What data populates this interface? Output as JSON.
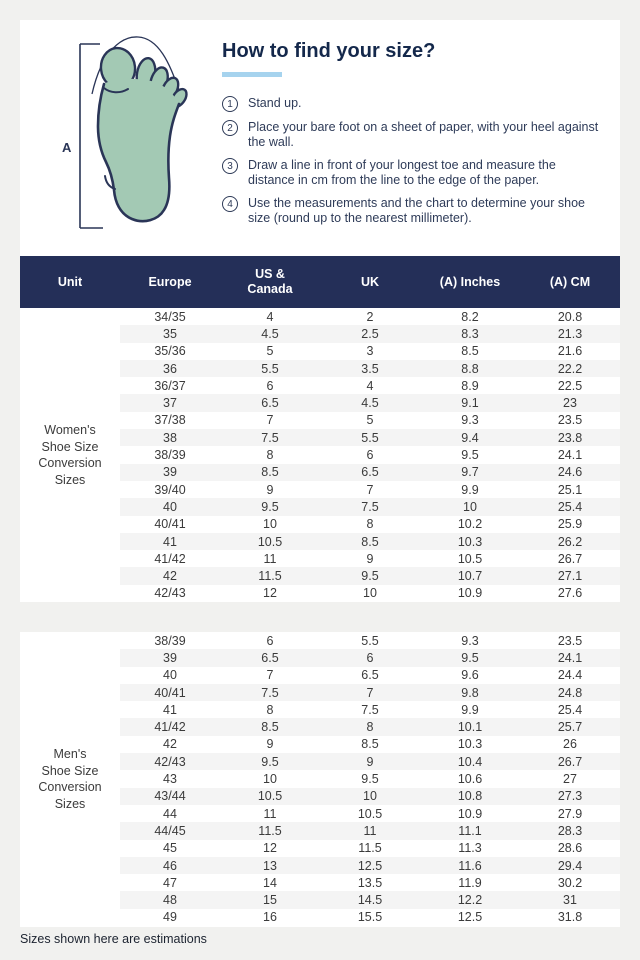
{
  "header": {
    "title": "How to find your size?"
  },
  "illustration": {
    "measure_label": "A",
    "foot_fill": "#a3c9b4",
    "outline_color": "#2a3557"
  },
  "instructions": {
    "steps": [
      {
        "num": "1",
        "text": "Stand up."
      },
      {
        "num": "2",
        "text": "Place your bare foot on a sheet of paper, with your heel against the wall."
      },
      {
        "num": "3",
        "text": "Draw a line in front of your longest toe and measure the distance in cm from the line to the edge of the paper."
      },
      {
        "num": "4",
        "text": "Use the measurements and the chart to determine your shoe size (round up to the nearest millimeter)."
      }
    ]
  },
  "table": {
    "columns": [
      "Unit",
      "Europe",
      "US &\nCanada",
      "UK",
      "(A) Inches",
      "(A) CM"
    ],
    "sections": [
      {
        "unit_label": "Women's\nShoe Size\nConversion\nSizes",
        "rows": [
          [
            "34/35",
            "4",
            "2",
            "8.2",
            "20.8"
          ],
          [
            "35",
            "4.5",
            "2.5",
            "8.3",
            "21.3"
          ],
          [
            "35/36",
            "5",
            "3",
            "8.5",
            "21.6"
          ],
          [
            "36",
            "5.5",
            "3.5",
            "8.8",
            "22.2"
          ],
          [
            "36/37",
            "6",
            "4",
            "8.9",
            "22.5"
          ],
          [
            "37",
            "6.5",
            "4.5",
            "9.1",
            "23"
          ],
          [
            "37/38",
            "7",
            "5",
            "9.3",
            "23.5"
          ],
          [
            "38",
            "7.5",
            "5.5",
            "9.4",
            "23.8"
          ],
          [
            "38/39",
            "8",
            "6",
            "9.5",
            "24.1"
          ],
          [
            "39",
            "8.5",
            "6.5",
            "9.7",
            "24.6"
          ],
          [
            "39/40",
            "9",
            "7",
            "9.9",
            "25.1"
          ],
          [
            "40",
            "9.5",
            "7.5",
            "10",
            "25.4"
          ],
          [
            "40/41",
            "10",
            "8",
            "10.2",
            "25.9"
          ],
          [
            "41",
            "10.5",
            "8.5",
            "10.3",
            "26.2"
          ],
          [
            "41/42",
            "11",
            "9",
            "10.5",
            "26.7"
          ],
          [
            "42",
            "11.5",
            "9.5",
            "10.7",
            "27.1"
          ],
          [
            "42/43",
            "12",
            "10",
            "10.9",
            "27.6"
          ]
        ]
      },
      {
        "unit_label": "Men's\nShoe Size\nConversion\nSizes",
        "rows": [
          [
            "38/39",
            "6",
            "5.5",
            "9.3",
            "23.5"
          ],
          [
            "39",
            "6.5",
            "6",
            "9.5",
            "24.1"
          ],
          [
            "40",
            "7",
            "6.5",
            "9.6",
            "24.4"
          ],
          [
            "40/41",
            "7.5",
            "7",
            "9.8",
            "24.8"
          ],
          [
            "41",
            "8",
            "7.5",
            "9.9",
            "25.4"
          ],
          [
            "41/42",
            "8.5",
            "8",
            "10.1",
            "25.7"
          ],
          [
            "42",
            "9",
            "8.5",
            "10.3",
            "26"
          ],
          [
            "42/43",
            "9.5",
            "9",
            "10.4",
            "26.7"
          ],
          [
            "43",
            "10",
            "9.5",
            "10.6",
            "27"
          ],
          [
            "43/44",
            "10.5",
            "10",
            "10.8",
            "27.3"
          ],
          [
            "44",
            "11",
            "10.5",
            "10.9",
            "27.9"
          ],
          [
            "44/45",
            "11.5",
            "11",
            "11.1",
            "28.3"
          ],
          [
            "45",
            "12",
            "11.5",
            "11.3",
            "28.6"
          ],
          [
            "46",
            "13",
            "12.5",
            "11.6",
            "29.4"
          ],
          [
            "47",
            "14",
            "13.5",
            "11.9",
            "30.2"
          ],
          [
            "48",
            "15",
            "14.5",
            "12.2",
            "31"
          ],
          [
            "49",
            "16",
            "15.5",
            "12.5",
            "31.8"
          ]
        ]
      }
    ]
  },
  "footer": {
    "note": "Sizes shown here are estimations"
  },
  "colors": {
    "page_bg": "#f1f1ef",
    "header_navy": "#242f58",
    "row_stripe": "#f4f4f4",
    "accent_underline": "#a6d3ee",
    "title_navy": "#14284b"
  }
}
